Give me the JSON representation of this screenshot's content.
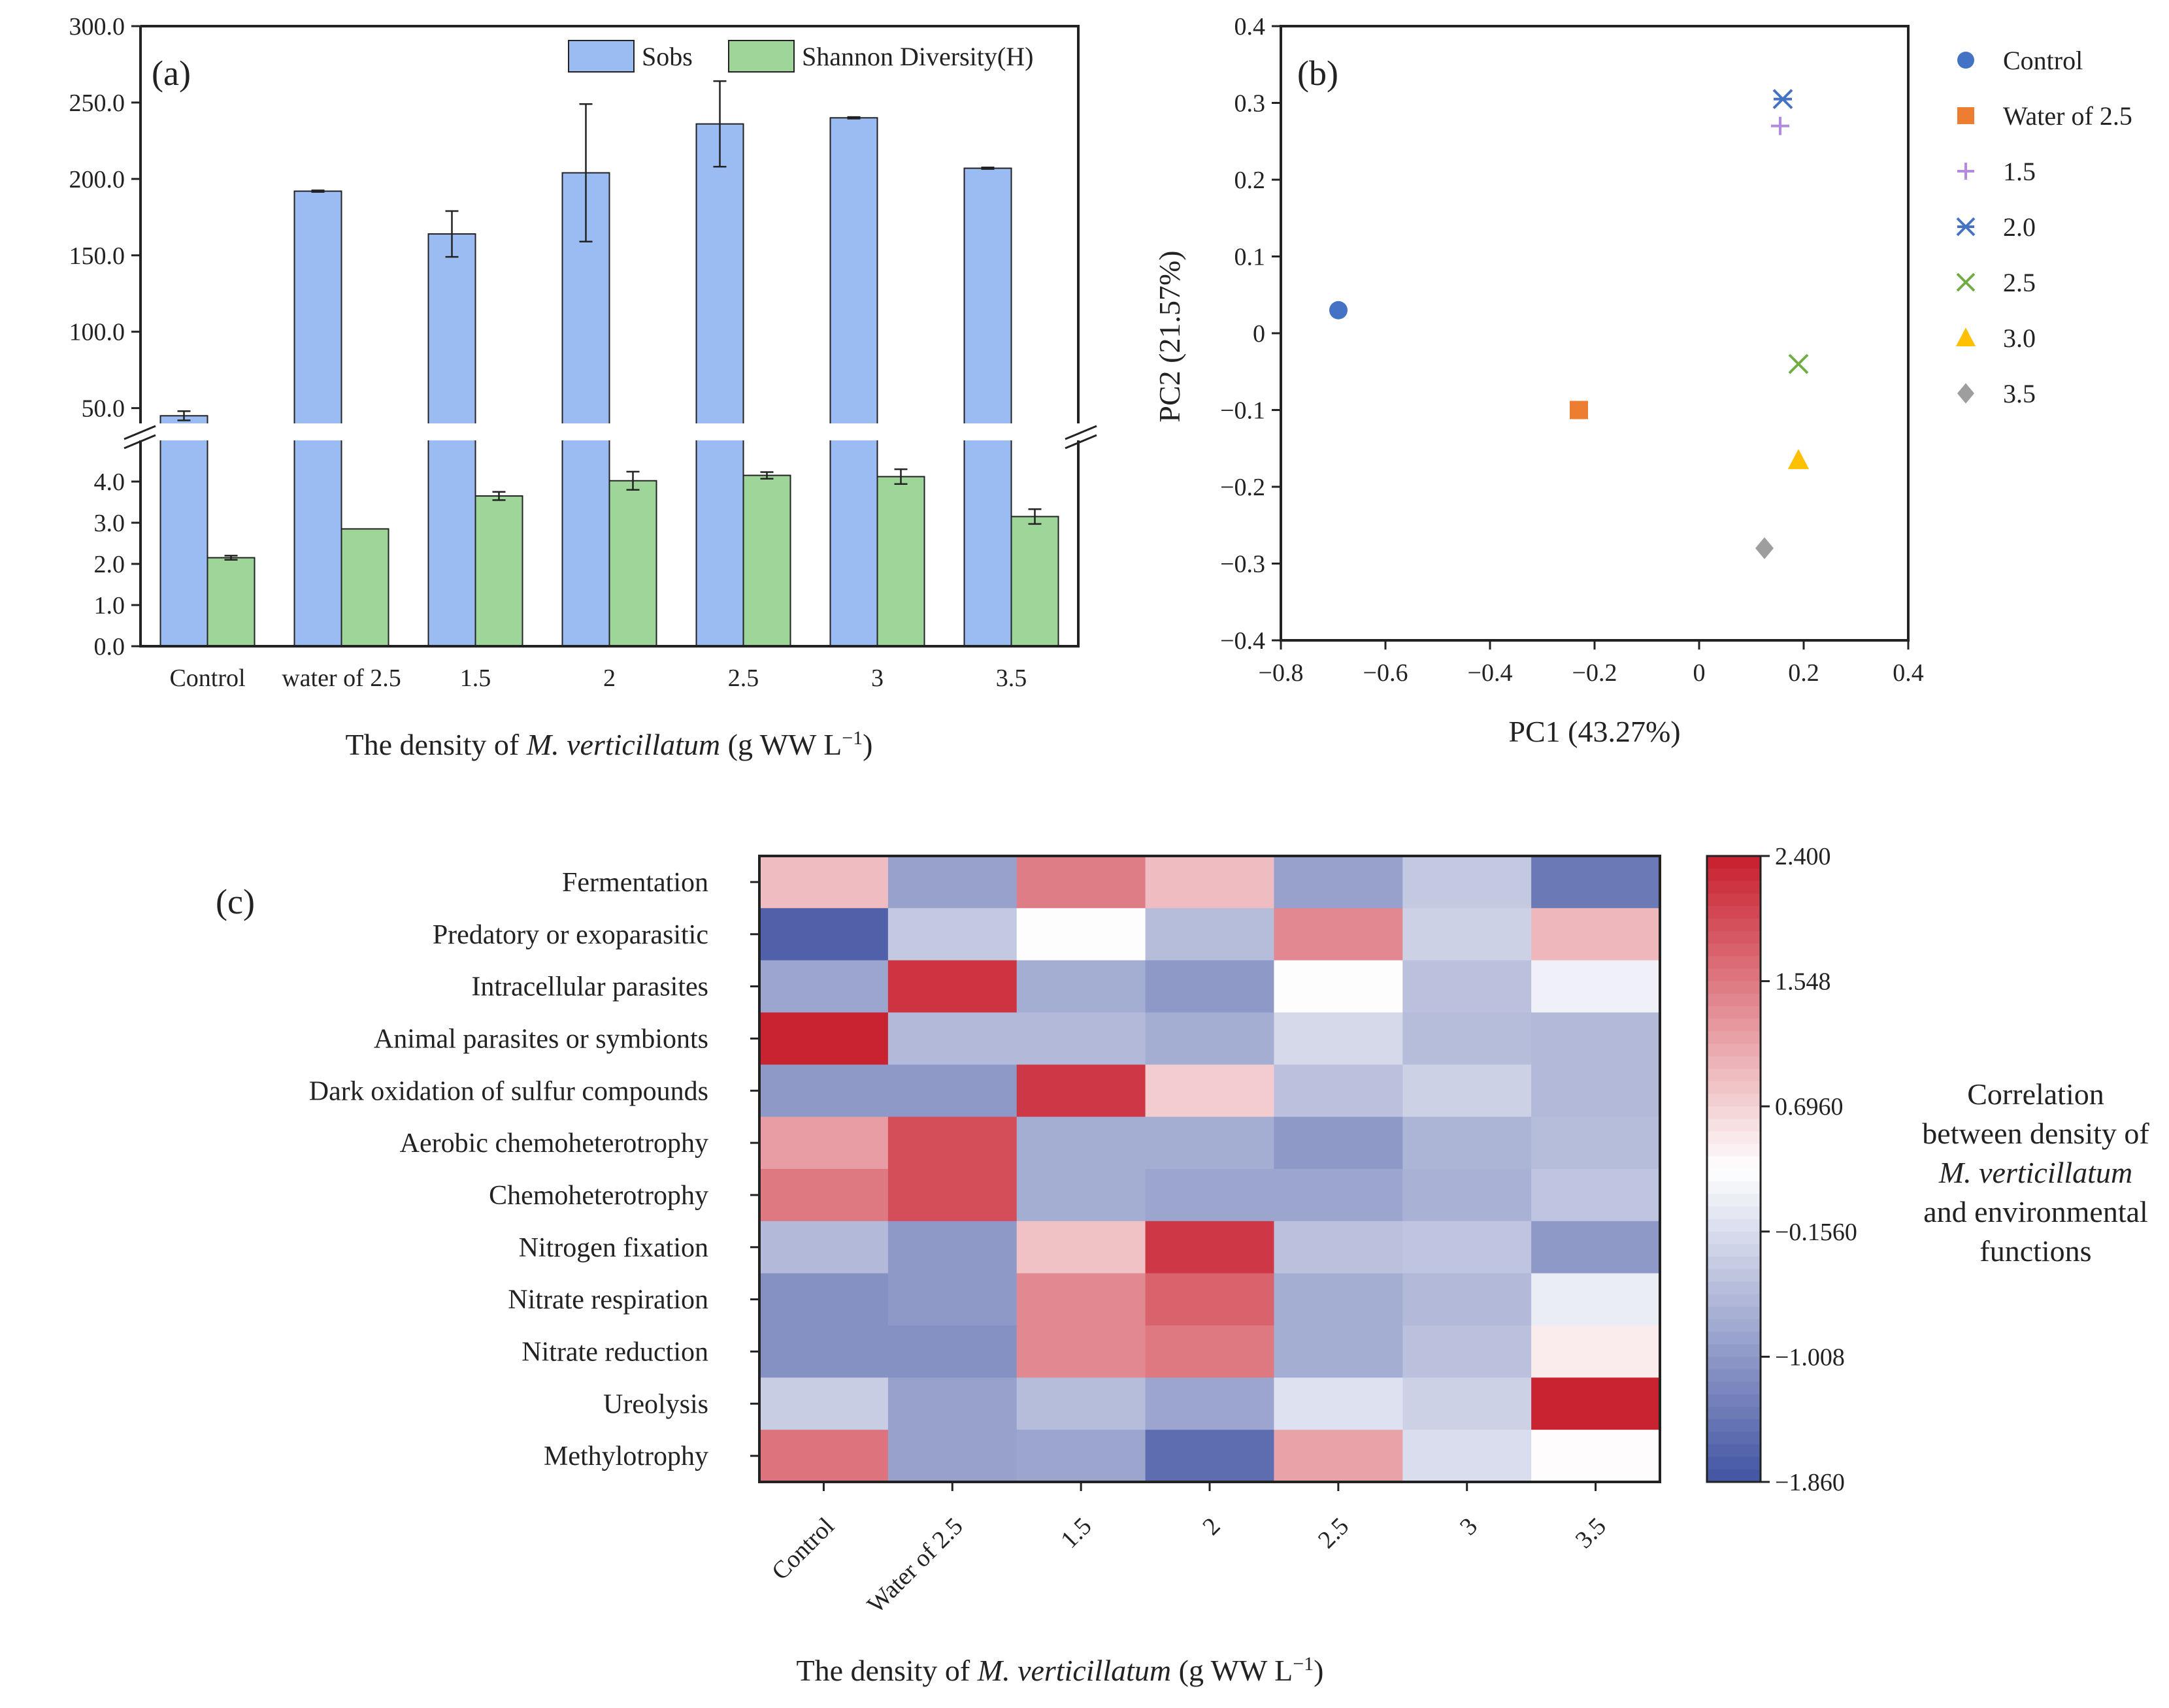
{
  "colors": {
    "sobs": "#9bbbf3",
    "shannon": "#9ed69a",
    "axis": "#222222"
  },
  "chart_data": [
    {
      "id": "a",
      "type": "bar",
      "panel_label": "(a)",
      "xlabel_prefix": "The density of ",
      "xlabel_italic": "M. verticillatum",
      "xlabel_suffix": " (g WW L",
      "xlabel_sup": "−1",
      "xlabel_end": ")",
      "categories": [
        "Control",
        "water of 2.5",
        "1.5",
        "2",
        "2.5",
        "3",
        "3.5"
      ],
      "series": [
        {
          "name": "Sobs",
          "values": [
            45,
            192,
            164,
            204,
            236,
            240,
            207
          ],
          "errors": [
            3,
            0.5,
            15,
            45,
            28,
            0.5,
            0.5
          ]
        },
        {
          "name": "Shannon Diversity(H)",
          "values": [
            2.15,
            2.85,
            3.65,
            4.02,
            4.15,
            4.12,
            3.15
          ],
          "errors": [
            0.05,
            0,
            0.1,
            0.22,
            0.08,
            0.18,
            0.18
          ]
        }
      ],
      "upper_axis": {
        "ylim": [
          40,
          300
        ],
        "ticks": [
          "50.0",
          "100.0",
          "150.0",
          "200.0",
          "250.0",
          "300.0"
        ],
        "tick_values": [
          50,
          100,
          150,
          200,
          250,
          300
        ]
      },
      "lower_axis": {
        "ylim": [
          0,
          5
        ],
        "ticks": [
          "0.0",
          "1.0",
          "2.0",
          "3.0",
          "4.0"
        ],
        "tick_values": [
          0,
          1,
          2,
          3,
          4
        ]
      }
    },
    {
      "id": "b",
      "type": "scatter",
      "panel_label": "(b)",
      "xlabel": "PC1 (43.27%)",
      "ylabel": "PC2 (21.57%)",
      "xlim": [
        -0.8,
        0.4
      ],
      "ylim": [
        -0.4,
        0.4
      ],
      "xticks": [
        "−0.8",
        "−0.6",
        "−0.4",
        "−0.2",
        "0",
        "0.2",
        "0.4"
      ],
      "xtick_values": [
        -0.8,
        -0.6,
        -0.4,
        -0.2,
        0,
        0.2,
        0.4
      ],
      "yticks": [
        "−0.4",
        "−0.3",
        "−0.2",
        "−0.1",
        "0",
        "0.1",
        "0.2",
        "0.3",
        "0.4"
      ],
      "ytick_values": [
        -0.4,
        -0.3,
        -0.2,
        -0.1,
        0,
        0.1,
        0.2,
        0.3,
        0.4
      ],
      "points": [
        {
          "name": "Control",
          "x": -0.69,
          "y": 0.03,
          "marker": "circle",
          "color": "#4472c4"
        },
        {
          "name": "Water of 2.5",
          "x": -0.23,
          "y": -0.1,
          "marker": "square",
          "color": "#ed7d31"
        },
        {
          "name": "1.5",
          "x": 0.155,
          "y": 0.27,
          "marker": "plus",
          "color": "#b48ae0"
        },
        {
          "name": "2.0",
          "x": 0.16,
          "y": 0.305,
          "marker": "asterisk",
          "color": "#4472c4"
        },
        {
          "name": "2.5",
          "x": 0.19,
          "y": -0.04,
          "marker": "cross",
          "color": "#70ad47"
        },
        {
          "name": "3.0",
          "x": 0.19,
          "y": -0.165,
          "marker": "triangle",
          "color": "#ffc000"
        },
        {
          "name": "3.5",
          "x": 0.125,
          "y": -0.28,
          "marker": "diamond",
          "color": "#9e9e9e"
        }
      ]
    },
    {
      "id": "c",
      "type": "heatmap",
      "panel_label": "(c)",
      "xlabel_prefix": "The density of ",
      "xlabel_italic": "M. verticillatum",
      "xlabel_suffix": " (g WW L",
      "xlabel_sup": "−1",
      "xlabel_end": ")",
      "columns": [
        "Control",
        "Water of 2.5",
        "1.5",
        "2",
        "2.5",
        "3",
        "3.5"
      ],
      "rows": [
        "Fermentation",
        "Predatory or exoparasitic",
        "Intracellular parasites",
        "Animal parasites or symbionts",
        "Dark oxidation of sulfur compounds",
        "Aerobic chemoheterotrophy",
        "Chemoheterotrophy",
        "Nitrogen fixation",
        "Nitrate respiration",
        "Nitrate reduction",
        "Ureolysis",
        "Methylotrophy"
      ],
      "values": [
        [
          0.9,
          -0.9,
          1.5,
          0.9,
          -0.9,
          -0.4,
          -1.4
        ],
        [
          -1.7,
          -0.4,
          0.25,
          -0.55,
          1.4,
          -0.3,
          0.95
        ],
        [
          -0.85,
          2.2,
          -0.75,
          -1.0,
          0.25,
          -0.5,
          0.1
        ],
        [
          2.35,
          -0.6,
          -0.6,
          -0.75,
          -0.2,
          -0.55,
          -0.6
        ],
        [
          -1.0,
          -1.0,
          2.15,
          0.75,
          -0.5,
          -0.3,
          -0.6
        ],
        [
          1.2,
          1.95,
          -0.75,
          -0.75,
          -1.0,
          -0.65,
          -0.55
        ],
        [
          1.55,
          1.95,
          -0.75,
          -0.85,
          -0.85,
          -0.7,
          -0.45
        ],
        [
          -0.6,
          -1.0,
          0.85,
          2.15,
          -0.5,
          -0.45,
          -1.0
        ],
        [
          -1.1,
          -1.0,
          1.4,
          1.75,
          -0.75,
          -0.6,
          0.05
        ],
        [
          -1.1,
          -1.1,
          1.4,
          1.55,
          -0.75,
          -0.5,
          0.45
        ],
        [
          -0.35,
          -0.9,
          -0.55,
          -0.85,
          -0.1,
          -0.3,
          2.35
        ],
        [
          1.6,
          -0.9,
          -0.85,
          -1.55,
          1.15,
          -0.15,
          0.3
        ]
      ],
      "vmin": -1.86,
      "vmax": 2.4,
      "colorbar_ticks": [
        "2.400",
        "1.548",
        "0.6960",
        "−0.1560",
        "−1.008",
        "−1.860"
      ],
      "colorbar_tick_values": [
        2.4,
        1.548,
        0.696,
        -0.156,
        -1.008,
        -1.86
      ],
      "colorbar_title_line1": "Correlation",
      "colorbar_title_line2": "between density of",
      "colorbar_title_italic": "M. verticillatum",
      "colorbar_title_line4": "and environmental",
      "colorbar_title_line5": "functions"
    }
  ]
}
